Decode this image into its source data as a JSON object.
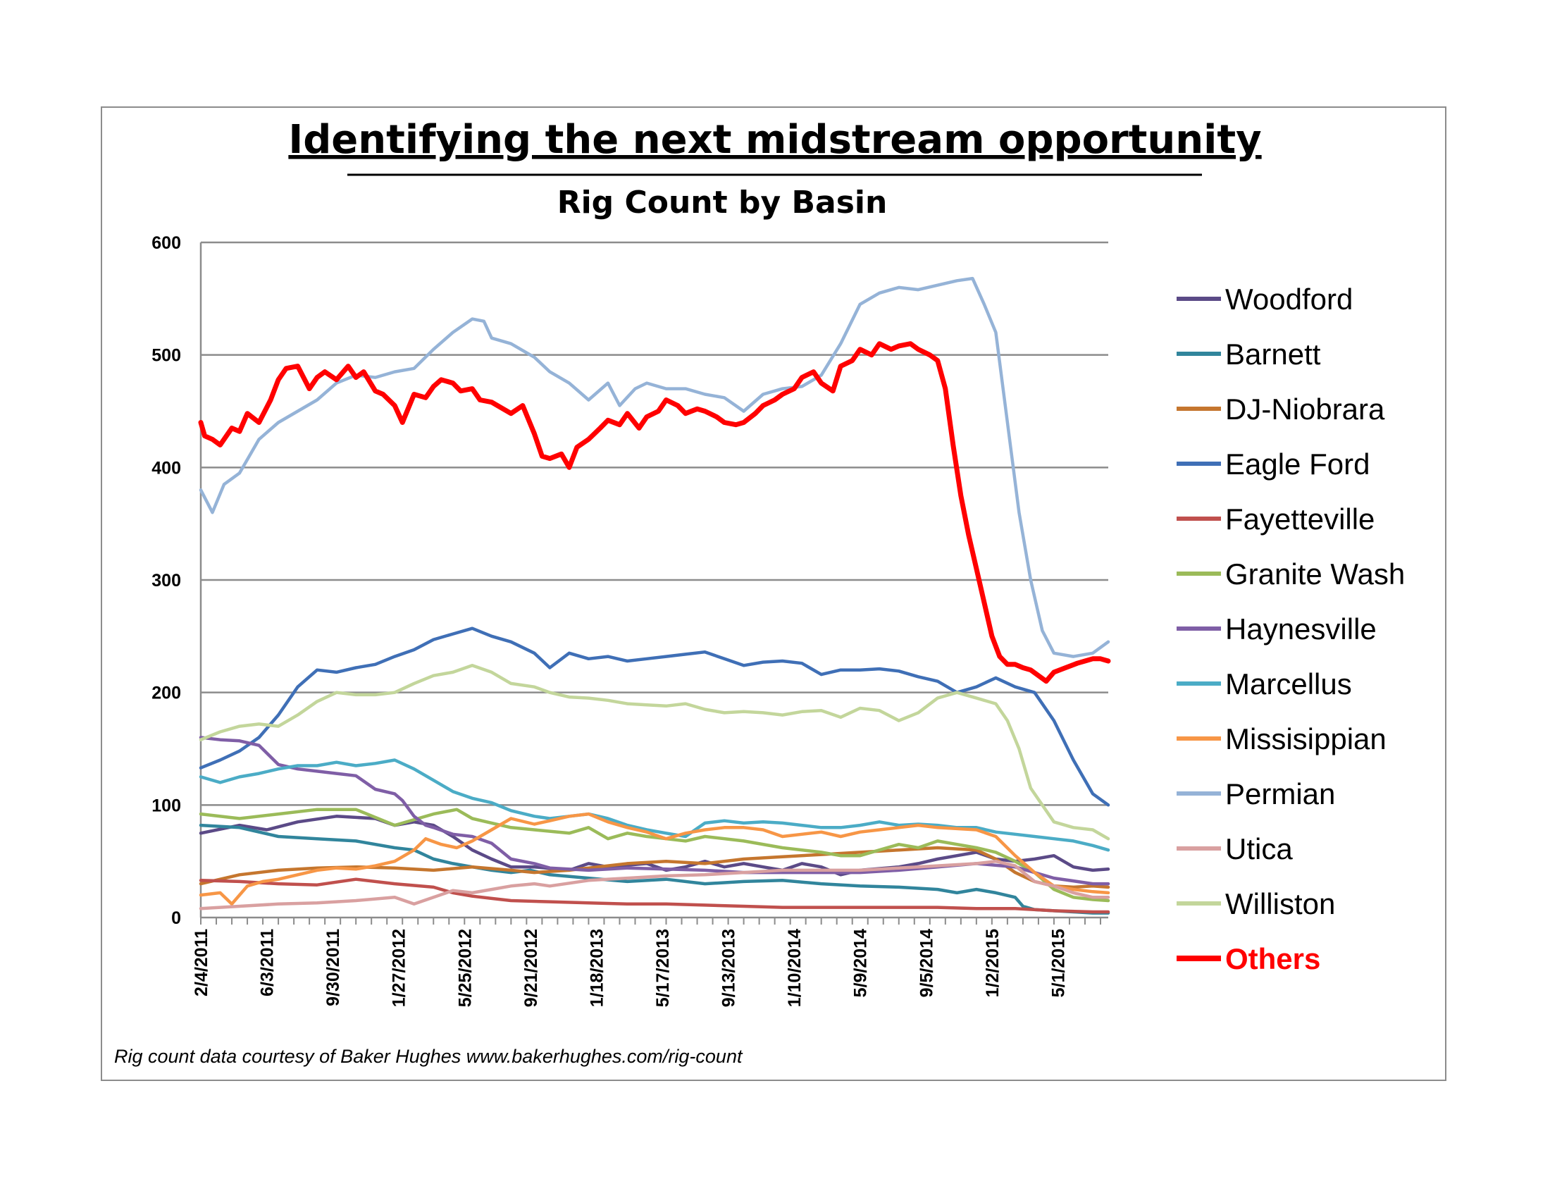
{
  "chart_data": {
    "type": "line",
    "title": "Identifying the next midstream opportunity",
    "subtitle": "Rig Count by Basin",
    "footnote": "Rig count data courtesy of Baker Hughes www.bakerhughes.com/rig-count",
    "xlabel": "",
    "ylabel": "",
    "x_tick_labels": [
      "2/4/2011",
      "6/3/2011",
      "9/30/2011",
      "1/27/2012",
      "5/25/2012",
      "9/21/2012",
      "1/18/2013",
      "5/17/2013",
      "9/13/2013",
      "1/10/2014",
      "5/9/2014",
      "9/5/2014",
      "1/2/2015",
      "5/1/2015"
    ],
    "x_range_weeks": [
      0,
      234
    ],
    "ylim": [
      0,
      600
    ],
    "y_ticks": [
      0,
      100,
      200,
      300,
      400,
      500,
      600
    ],
    "grid": true,
    "legend_position": "right",
    "x_unit": "weeks since 2/4/2011",
    "series": [
      {
        "name": "Woodford",
        "color": "#5b4a87",
        "bold": false,
        "x": [
          0,
          10,
          17,
          25,
          35,
          45,
          50,
          55,
          60,
          65,
          70,
          75,
          80,
          86,
          95,
          100,
          105,
          115,
          120,
          125,
          130,
          135,
          140,
          145,
          150,
          155,
          160,
          165,
          170,
          180,
          185,
          190,
          195,
          200,
          205,
          210,
          215,
          220,
          225,
          230,
          234
        ],
        "y": [
          75,
          82,
          78,
          85,
          90,
          88,
          82,
          85,
          82,
          72,
          60,
          52,
          45,
          45,
          42,
          48,
          45,
          48,
          42,
          45,
          50,
          45,
          48,
          45,
          42,
          48,
          45,
          38,
          42,
          45,
          48,
          52,
          55,
          58,
          52,
          50,
          52,
          55,
          45,
          42,
          43
        ]
      },
      {
        "name": "Barnett",
        "color": "#31859c",
        "bold": false,
        "x": [
          0,
          10,
          20,
          30,
          40,
          50,
          55,
          60,
          65,
          70,
          75,
          80,
          85,
          90,
          100,
          110,
          120,
          130,
          140,
          150,
          160,
          170,
          180,
          190,
          195,
          200,
          205,
          210,
          212,
          215,
          220,
          225,
          230,
          234
        ],
        "y": [
          82,
          80,
          72,
          70,
          68,
          62,
          60,
          52,
          48,
          45,
          42,
          40,
          42,
          38,
          35,
          32,
          34,
          30,
          32,
          33,
          30,
          28,
          27,
          25,
          22,
          25,
          22,
          18,
          10,
          7,
          6,
          5,
          4,
          4
        ]
      },
      {
        "name": "DJ-Niobrara",
        "color": "#c5762e",
        "bold": false,
        "x": [
          0,
          10,
          20,
          30,
          40,
          50,
          60,
          70,
          80,
          86,
          95,
          100,
          110,
          120,
          130,
          140,
          150,
          160,
          170,
          180,
          190,
          200,
          205,
          210,
          215,
          220,
          225,
          230,
          234
        ],
        "y": [
          30,
          38,
          42,
          44,
          45,
          44,
          42,
          45,
          42,
          40,
          42,
          44,
          48,
          50,
          48,
          52,
          54,
          56,
          58,
          60,
          62,
          60,
          52,
          40,
          32,
          28,
          27,
          28,
          27
        ]
      },
      {
        "name": "Eagle Ford",
        "color": "#3f6fb6",
        "bold": false,
        "x": [
          0,
          5,
          10,
          15,
          20,
          25,
          30,
          35,
          40,
          45,
          50,
          55,
          60,
          65,
          70,
          75,
          80,
          86,
          90,
          95,
          100,
          105,
          110,
          115,
          120,
          125,
          130,
          135,
          140,
          145,
          150,
          155,
          160,
          165,
          170,
          175,
          180,
          185,
          190,
          195,
          200,
          205,
          210,
          215,
          220,
          225,
          230,
          234
        ],
        "y": [
          133,
          140,
          148,
          160,
          180,
          205,
          220,
          218,
          222,
          225,
          232,
          238,
          247,
          252,
          257,
          250,
          245,
          235,
          222,
          235,
          230,
          232,
          228,
          230,
          232,
          234,
          236,
          230,
          224,
          227,
          228,
          226,
          216,
          220,
          220,
          221,
          219,
          214,
          210,
          200,
          205,
          213,
          205,
          200,
          175,
          140,
          110,
          100
        ]
      },
      {
        "name": "Fayetteville",
        "color": "#c0504d",
        "bold": false,
        "x": [
          0,
          10,
          20,
          30,
          40,
          50,
          60,
          65,
          70,
          75,
          80,
          90,
          100,
          110,
          120,
          130,
          140,
          150,
          160,
          170,
          180,
          190,
          200,
          210,
          220,
          230,
          234
        ],
        "y": [
          33,
          32,
          30,
          29,
          34,
          30,
          27,
          22,
          19,
          17,
          15,
          14,
          13,
          12,
          12,
          11,
          10,
          9,
          9,
          9,
          9,
          9,
          8,
          8,
          6,
          5,
          5
        ]
      },
      {
        "name": "Granite Wash",
        "color": "#9bbb59",
        "bold": false,
        "x": [
          0,
          10,
          20,
          30,
          40,
          50,
          60,
          66,
          70,
          75,
          80,
          86,
          95,
          100,
          105,
          110,
          115,
          120,
          125,
          130,
          140,
          150,
          160,
          165,
          170,
          175,
          180,
          185,
          190,
          195,
          200,
          205,
          210,
          215,
          220,
          225,
          230,
          234
        ],
        "y": [
          92,
          88,
          92,
          96,
          96,
          82,
          92,
          96,
          88,
          84,
          80,
          78,
          75,
          80,
          70,
          75,
          72,
          70,
          68,
          72,
          68,
          62,
          58,
          55,
          55,
          60,
          65,
          62,
          68,
          65,
          62,
          58,
          50,
          40,
          25,
          18,
          16,
          15
        ]
      },
      {
        "name": "Haynesville",
        "color": "#7f5ea6",
        "bold": false,
        "x": [
          0,
          5,
          10,
          15,
          20,
          25,
          30,
          35,
          40,
          45,
          50,
          52,
          55,
          58,
          60,
          65,
          70,
          75,
          80,
          86,
          90,
          100,
          110,
          120,
          130,
          140,
          150,
          160,
          170,
          180,
          190,
          200,
          210,
          220,
          230,
          234
        ],
        "y": [
          160,
          158,
          157,
          153,
          136,
          132,
          130,
          128,
          126,
          114,
          110,
          104,
          90,
          82,
          80,
          74,
          72,
          66,
          52,
          48,
          44,
          42,
          44,
          43,
          42,
          40,
          40,
          40,
          40,
          42,
          45,
          48,
          45,
          35,
          30,
          30
        ]
      },
      {
        "name": "Marcellus",
        "color": "#4bacc6",
        "bold": false,
        "x": [
          0,
          5,
          10,
          15,
          20,
          25,
          30,
          35,
          40,
          45,
          50,
          55,
          60,
          65,
          70,
          75,
          80,
          86,
          90,
          95,
          100,
          105,
          110,
          115,
          120,
          125,
          130,
          135,
          140,
          145,
          150,
          155,
          160,
          165,
          170,
          175,
          180,
          185,
          190,
          195,
          200,
          205,
          210,
          215,
          220,
          225,
          230,
          234
        ],
        "y": [
          125,
          120,
          125,
          128,
          132,
          135,
          135,
          138,
          135,
          137,
          140,
          132,
          122,
          112,
          106,
          102,
          95,
          90,
          88,
          90,
          92,
          88,
          82,
          78,
          75,
          72,
          84,
          86,
          84,
          85,
          84,
          82,
          80,
          80,
          82,
          85,
          82,
          83,
          82,
          80,
          80,
          76,
          74,
          72,
          70,
          68,
          64,
          60
        ]
      },
      {
        "name": "Missisippian",
        "color": "#f79646",
        "bold": false,
        "x": [
          0,
          5,
          8,
          12,
          16,
          20,
          25,
          30,
          35,
          40,
          45,
          50,
          55,
          58,
          62,
          66,
          70,
          75,
          80,
          86,
          90,
          95,
          100,
          105,
          110,
          115,
          120,
          125,
          130,
          135,
          140,
          145,
          150,
          155,
          160,
          165,
          170,
          175,
          180,
          185,
          190,
          195,
          200,
          205,
          210,
          215,
          220,
          225,
          230,
          234
        ],
        "y": [
          20,
          22,
          12,
          28,
          32,
          34,
          38,
          42,
          44,
          43,
          46,
          50,
          60,
          70,
          65,
          62,
          68,
          78,
          88,
          83,
          86,
          90,
          92,
          85,
          80,
          76,
          70,
          75,
          78,
          80,
          80,
          78,
          72,
          74,
          76,
          72,
          76,
          78,
          80,
          82,
          80,
          79,
          78,
          72,
          55,
          40,
          28,
          25,
          23,
          22
        ]
      },
      {
        "name": "Permian",
        "color": "#95b3d7",
        "bold": false,
        "x": [
          0,
          3,
          6,
          10,
          15,
          20,
          25,
          30,
          35,
          40,
          45,
          50,
          55,
          60,
          65,
          70,
          73,
          75,
          80,
          86,
          90,
          95,
          100,
          105,
          108,
          112,
          115,
          120,
          125,
          130,
          135,
          140,
          145,
          150,
          155,
          160,
          165,
          170,
          175,
          180,
          185,
          190,
          195,
          199,
          202,
          205,
          208,
          211,
          214,
          217,
          220,
          225,
          230,
          234
        ],
        "y": [
          380,
          360,
          385,
          395,
          425,
          440,
          450,
          460,
          475,
          482,
          480,
          485,
          488,
          505,
          520,
          532,
          530,
          515,
          510,
          498,
          485,
          475,
          460,
          475,
          455,
          470,
          475,
          470,
          470,
          465,
          462,
          450,
          465,
          470,
          472,
          482,
          510,
          545,
          555,
          560,
          558,
          562,
          566,
          568,
          545,
          520,
          440,
          360,
          300,
          255,
          235,
          232,
          235,
          245
        ]
      },
      {
        "name": "Utica",
        "color": "#d9a0a0",
        "bold": false,
        "x": [
          0,
          10,
          20,
          30,
          40,
          50,
          55,
          60,
          65,
          70,
          75,
          80,
          86,
          90,
          100,
          110,
          120,
          130,
          140,
          150,
          160,
          170,
          180,
          190,
          200,
          205,
          210,
          215,
          220,
          225,
          230,
          234
        ],
        "y": [
          8,
          10,
          12,
          13,
          15,
          18,
          12,
          18,
          24,
          22,
          25,
          28,
          30,
          28,
          33,
          35,
          37,
          38,
          40,
          42,
          42,
          42,
          44,
          46,
          48,
          50,
          46,
          32,
          28,
          22,
          18,
          18
        ]
      },
      {
        "name": "Williston",
        "color": "#c3d69b",
        "bold": false,
        "x": [
          0,
          5,
          10,
          15,
          20,
          25,
          30,
          35,
          40,
          45,
          50,
          55,
          60,
          65,
          70,
          75,
          80,
          86,
          90,
          95,
          100,
          105,
          110,
          115,
          120,
          125,
          130,
          135,
          140,
          145,
          150,
          155,
          160,
          165,
          170,
          175,
          180,
          185,
          190,
          195,
          200,
          205,
          208,
          211,
          214,
          217,
          220,
          225,
          230,
          234
        ],
        "y": [
          158,
          165,
          170,
          172,
          170,
          180,
          192,
          200,
          198,
          198,
          200,
          208,
          215,
          218,
          224,
          218,
          208,
          205,
          200,
          196,
          195,
          193,
          190,
          189,
          188,
          190,
          185,
          182,
          183,
          182,
          180,
          183,
          184,
          178,
          186,
          184,
          175,
          182,
          195,
          200,
          195,
          190,
          175,
          150,
          115,
          100,
          85,
          80,
          78,
          70
        ]
      },
      {
        "name": "Others",
        "color": "#ff0000",
        "bold": true,
        "x": [
          0,
          1,
          3,
          5,
          8,
          10,
          12,
          15,
          18,
          20,
          22,
          25,
          28,
          30,
          32,
          35,
          38,
          40,
          42,
          45,
          47,
          50,
          52,
          55,
          58,
          60,
          62,
          65,
          67,
          70,
          72,
          75,
          78,
          80,
          83,
          86,
          88,
          90,
          93,
          95,
          97,
          100,
          103,
          105,
          108,
          110,
          113,
          115,
          118,
          120,
          123,
          125,
          128,
          130,
          133,
          135,
          138,
          140,
          143,
          145,
          148,
          150,
          153,
          155,
          158,
          160,
          163,
          165,
          168,
          170,
          173,
          175,
          178,
          180,
          183,
          185,
          188,
          190,
          192,
          194,
          196,
          198,
          200,
          202,
          204,
          206,
          208,
          210,
          212,
          214,
          216,
          218,
          220,
          223,
          226,
          228,
          230,
          232,
          234
        ],
        "y": [
          440,
          428,
          425,
          420,
          435,
          432,
          448,
          440,
          460,
          478,
          488,
          490,
          470,
          480,
          485,
          478,
          490,
          480,
          485,
          468,
          465,
          455,
          440,
          465,
          462,
          472,
          478,
          475,
          468,
          470,
          460,
          458,
          452,
          448,
          455,
          430,
          410,
          408,
          412,
          400,
          418,
          425,
          435,
          442,
          438,
          448,
          435,
          445,
          450,
          460,
          455,
          448,
          452,
          450,
          445,
          440,
          438,
          440,
          448,
          455,
          460,
          465,
          470,
          480,
          485,
          475,
          468,
          490,
          495,
          505,
          500,
          510,
          505,
          508,
          510,
          505,
          500,
          495,
          470,
          420,
          375,
          340,
          310,
          280,
          250,
          232,
          225,
          225,
          222,
          220,
          215,
          210,
          218,
          222,
          226,
          228,
          230,
          230,
          228
        ]
      }
    ]
  }
}
